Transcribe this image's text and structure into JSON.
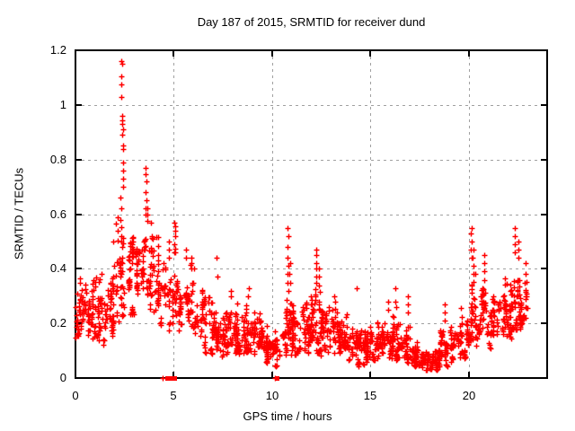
{
  "style": {
    "background": "#ffffff",
    "marker_color": "#ff0000",
    "grid_color": "#a0a0a0",
    "border_color": "#000000",
    "text_color": "#000000"
  },
  "chart_data": {
    "type": "scatter",
    "title": "Day 187 of 2015, SRMTID for receiver dund",
    "xlabel": "GPS time / hours",
    "ylabel": "SRMTID / TECUs",
    "xlim": [
      0,
      24
    ],
    "ylim": [
      0,
      1.2
    ],
    "xticks": [
      {
        "v": 0,
        "label": "0"
      },
      {
        "v": 5,
        "label": "5"
      },
      {
        "v": 10,
        "label": "10"
      },
      {
        "v": 15,
        "label": "15"
      },
      {
        "v": 20,
        "label": "20"
      }
    ],
    "yticks": [
      {
        "v": 0,
        "label": "0"
      },
      {
        "v": 0.2,
        "label": "0.2"
      },
      {
        "v": 0.4,
        "label": "0.4"
      },
      {
        "v": 0.6,
        "label": "0.6"
      },
      {
        "v": 0.8,
        "label": "0.8"
      },
      {
        "v": 1.0,
        "label": "1"
      },
      {
        "v": 1.2,
        "label": "1.2"
      }
    ],
    "grid": true,
    "legend": "none",
    "marker": "plus",
    "series_name": "SRMTID",
    "seed": 20150187,
    "band_bins": [
      [
        0.0,
        0.5,
        48,
        0.14,
        0.42
      ],
      [
        0.5,
        1.0,
        48,
        0.12,
        0.4
      ],
      [
        1.0,
        1.5,
        48,
        0.08,
        0.45
      ],
      [
        1.5,
        2.0,
        50,
        0.15,
        0.52
      ],
      [
        2.0,
        2.5,
        52,
        0.18,
        0.66
      ],
      [
        2.5,
        3.0,
        48,
        0.22,
        0.62
      ],
      [
        3.0,
        3.5,
        46,
        0.26,
        0.6
      ],
      [
        3.5,
        4.0,
        46,
        0.22,
        0.6
      ],
      [
        4.0,
        4.5,
        42,
        0.17,
        0.55
      ],
      [
        4.5,
        5.0,
        36,
        0.15,
        0.48
      ],
      [
        5.0,
        5.5,
        40,
        0.15,
        0.5
      ],
      [
        5.5,
        6.0,
        42,
        0.13,
        0.45
      ],
      [
        6.0,
        6.5,
        38,
        0.1,
        0.38
      ],
      [
        6.5,
        7.0,
        40,
        0.08,
        0.32
      ],
      [
        7.0,
        7.5,
        44,
        0.07,
        0.28
      ],
      [
        7.5,
        8.0,
        52,
        0.07,
        0.3
      ],
      [
        8.0,
        8.5,
        56,
        0.06,
        0.28
      ],
      [
        8.5,
        9.0,
        56,
        0.06,
        0.29
      ],
      [
        9.0,
        9.5,
        56,
        0.05,
        0.26
      ],
      [
        9.5,
        10.0,
        54,
        0.04,
        0.21
      ],
      [
        10.0,
        10.5,
        44,
        0.03,
        0.18
      ],
      [
        10.5,
        11.0,
        48,
        0.08,
        0.34
      ],
      [
        11.0,
        11.5,
        52,
        0.08,
        0.3
      ],
      [
        11.5,
        12.0,
        54,
        0.07,
        0.3
      ],
      [
        12.0,
        12.5,
        54,
        0.09,
        0.38
      ],
      [
        12.5,
        13.0,
        54,
        0.08,
        0.32
      ],
      [
        13.0,
        13.5,
        56,
        0.06,
        0.3
      ],
      [
        13.5,
        14.0,
        52,
        0.04,
        0.26
      ],
      [
        14.0,
        14.5,
        50,
        0.03,
        0.24
      ],
      [
        14.5,
        15.0,
        52,
        0.04,
        0.19
      ],
      [
        15.0,
        15.5,
        54,
        0.05,
        0.21
      ],
      [
        15.5,
        16.0,
        54,
        0.05,
        0.23
      ],
      [
        16.0,
        16.5,
        54,
        0.05,
        0.24
      ],
      [
        16.5,
        17.0,
        52,
        0.05,
        0.21
      ],
      [
        17.0,
        17.5,
        54,
        0.04,
        0.15
      ],
      [
        17.5,
        18.0,
        60,
        0.025,
        0.1
      ],
      [
        18.0,
        18.5,
        60,
        0.025,
        0.1
      ],
      [
        18.5,
        19.0,
        50,
        0.04,
        0.2
      ],
      [
        19.0,
        19.5,
        48,
        0.05,
        0.22
      ],
      [
        19.5,
        20.0,
        48,
        0.06,
        0.27
      ],
      [
        20.0,
        20.5,
        48,
        0.09,
        0.42
      ],
      [
        20.5,
        21.0,
        48,
        0.1,
        0.4
      ],
      [
        21.0,
        21.5,
        50,
        0.1,
        0.36
      ],
      [
        21.5,
        22.0,
        50,
        0.12,
        0.4
      ],
      [
        22.0,
        22.5,
        50,
        0.14,
        0.46
      ],
      [
        22.5,
        23.0,
        48,
        0.15,
        0.42
      ]
    ],
    "outlier_columns": [
      {
        "x": 2.35,
        "ys": [
          1.16,
          1.15,
          1.105,
          1.075,
          1.03
        ]
      },
      {
        "x": 2.38,
        "ys": [
          0.96,
          0.945,
          0.93,
          0.91,
          0.89
        ]
      },
      {
        "x": 2.42,
        "ys": [
          0.85,
          0.84,
          0.79,
          0.76,
          0.73,
          0.7
        ]
      },
      {
        "x": 2.3,
        "ys": [
          0.66,
          0.62,
          0.58
        ]
      },
      {
        "x": 3.58,
        "ys": [
          0.77,
          0.745,
          0.72,
          0.68,
          0.65,
          0.62,
          0.6
        ]
      },
      {
        "x": 3.65,
        "ys": [
          0.62,
          0.6,
          0.575
        ]
      },
      {
        "x": 5.05,
        "ys": [
          0.57,
          0.555,
          0.54,
          0.52,
          0.49,
          0.46
        ]
      },
      {
        "x": 4.75,
        "ys": [
          0.5,
          0.47,
          0.44
        ]
      },
      {
        "x": 5.6,
        "ys": [
          0.47,
          0.44
        ]
      },
      {
        "x": 5.9,
        "ys": [
          0.44,
          0.42,
          0.4
        ]
      },
      {
        "x": 7.2,
        "ys": [
          0.44,
          0.37
        ]
      },
      {
        "x": 7.9,
        "ys": [
          0.32,
          0.3
        ]
      },
      {
        "x": 8.8,
        "ys": [
          0.33,
          0.3
        ]
      },
      {
        "x": 10.8,
        "ys": [
          0.55,
          0.52,
          0.48,
          0.44,
          0.41,
          0.38,
          0.35,
          0.32
        ]
      },
      {
        "x": 10.9,
        "ys": [
          0.42,
          0.38,
          0.35
        ]
      },
      {
        "x": 12.25,
        "ys": [
          0.47,
          0.45,
          0.42,
          0.4,
          0.37,
          0.35
        ]
      },
      {
        "x": 12.4,
        "ys": [
          0.4,
          0.37,
          0.34
        ]
      },
      {
        "x": 13.2,
        "ys": [
          0.3,
          0.28
        ]
      },
      {
        "x": 14.3,
        "ys": [
          0.33
        ]
      },
      {
        "x": 15.9,
        "ys": [
          0.28,
          0.25
        ]
      },
      {
        "x": 16.3,
        "ys": [
          0.33,
          0.28,
          0.26
        ]
      },
      {
        "x": 16.9,
        "ys": [
          0.3,
          0.27,
          0.24
        ]
      },
      {
        "x": 18.8,
        "ys": [
          0.27,
          0.24,
          0.21
        ]
      },
      {
        "x": 20.15,
        "ys": [
          0.55,
          0.53,
          0.5,
          0.47,
          0.44
        ]
      },
      {
        "x": 20.25,
        "ys": [
          0.47,
          0.44,
          0.41,
          0.38
        ]
      },
      {
        "x": 20.8,
        "ys": [
          0.45,
          0.42,
          0.39,
          0.36
        ]
      },
      {
        "x": 22.35,
        "ys": [
          0.55,
          0.52,
          0.49,
          0.46
        ]
      },
      {
        "x": 22.55,
        "ys": [
          0.5,
          0.47,
          0.44
        ]
      },
      {
        "x": 22.9,
        "ys": [
          0.42,
          0.38,
          0.35,
          0.3,
          0.26,
          0.22
        ]
      }
    ],
    "zero_points": {
      "squares": [
        4.66,
        4.7,
        4.74,
        4.79,
        4.84,
        5.01,
        10.22,
        10.26
      ],
      "plusses": [
        4.43,
        10.14
      ]
    }
  }
}
